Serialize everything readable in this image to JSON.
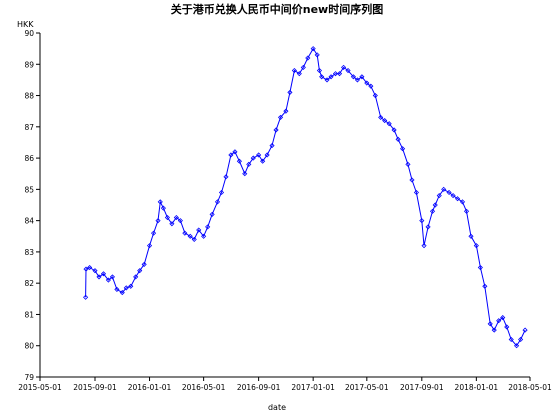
{
  "chart_data": {
    "type": "line",
    "title": "关于港币兑换人民币中间价new时间序列图",
    "xlabel": "date",
    "ylabel": "HKK",
    "ylim": [
      79,
      90
    ],
    "xlim": [
      "2015-05-01",
      "2018-05-01"
    ],
    "yticks": [
      79,
      80,
      81,
      82,
      83,
      84,
      85,
      86,
      87,
      88,
      89,
      90
    ],
    "xticks": [
      "2015-05-01",
      "2015-09-01",
      "2016-01-01",
      "2016-05-01",
      "2016-09-01",
      "2017-01-01",
      "2017-05-01",
      "2017-09-01",
      "2018-01-01",
      "2018-05-01"
    ],
    "line_color": "#0000ff",
    "marker": "diamond",
    "grid": false,
    "series": [
      {
        "name": "",
        "points": [
          [
            "2015-08-11",
            81.55
          ],
          [
            "2015-08-12",
            82.45
          ],
          [
            "2015-08-20",
            82.5
          ],
          [
            "2015-09-01",
            82.4
          ],
          [
            "2015-09-10",
            82.2
          ],
          [
            "2015-09-20",
            82.3
          ],
          [
            "2015-10-01",
            82.1
          ],
          [
            "2015-10-10",
            82.2
          ],
          [
            "2015-10-20",
            81.8
          ],
          [
            "2015-11-01",
            81.7
          ],
          [
            "2015-11-10",
            81.85
          ],
          [
            "2015-11-20",
            81.9
          ],
          [
            "2015-12-01",
            82.2
          ],
          [
            "2015-12-10",
            82.4
          ],
          [
            "2015-12-20",
            82.6
          ],
          [
            "2016-01-01",
            83.2
          ],
          [
            "2016-01-10",
            83.6
          ],
          [
            "2016-01-20",
            84.0
          ],
          [
            "2016-01-25",
            84.6
          ],
          [
            "2016-02-01",
            84.4
          ],
          [
            "2016-02-10",
            84.1
          ],
          [
            "2016-02-20",
            83.9
          ],
          [
            "2016-03-01",
            84.1
          ],
          [
            "2016-03-10",
            84.0
          ],
          [
            "2016-03-20",
            83.6
          ],
          [
            "2016-04-01",
            83.5
          ],
          [
            "2016-04-10",
            83.4
          ],
          [
            "2016-04-20",
            83.7
          ],
          [
            "2016-05-01",
            83.5
          ],
          [
            "2016-05-10",
            83.8
          ],
          [
            "2016-05-20",
            84.2
          ],
          [
            "2016-06-01",
            84.6
          ],
          [
            "2016-06-10",
            84.9
          ],
          [
            "2016-06-20",
            85.4
          ],
          [
            "2016-07-01",
            86.1
          ],
          [
            "2016-07-10",
            86.2
          ],
          [
            "2016-07-20",
            85.9
          ],
          [
            "2016-08-01",
            85.5
          ],
          [
            "2016-08-10",
            85.8
          ],
          [
            "2016-08-20",
            86.0
          ],
          [
            "2016-09-01",
            86.1
          ],
          [
            "2016-09-10",
            85.9
          ],
          [
            "2016-09-20",
            86.1
          ],
          [
            "2016-10-01",
            86.4
          ],
          [
            "2016-10-10",
            86.9
          ],
          [
            "2016-10-20",
            87.3
          ],
          [
            "2016-11-01",
            87.5
          ],
          [
            "2016-11-10",
            88.1
          ],
          [
            "2016-11-20",
            88.8
          ],
          [
            "2016-12-01",
            88.7
          ],
          [
            "2016-12-10",
            88.9
          ],
          [
            "2016-12-20",
            89.2
          ],
          [
            "2017-01-01",
            89.5
          ],
          [
            "2017-01-10",
            89.3
          ],
          [
            "2017-01-15",
            88.8
          ],
          [
            "2017-01-20",
            88.6
          ],
          [
            "2017-02-01",
            88.5
          ],
          [
            "2017-02-10",
            88.6
          ],
          [
            "2017-02-20",
            88.7
          ],
          [
            "2017-03-01",
            88.7
          ],
          [
            "2017-03-10",
            88.9
          ],
          [
            "2017-03-20",
            88.8
          ],
          [
            "2017-04-01",
            88.6
          ],
          [
            "2017-04-10",
            88.5
          ],
          [
            "2017-04-20",
            88.6
          ],
          [
            "2017-05-01",
            88.4
          ],
          [
            "2017-05-10",
            88.3
          ],
          [
            "2017-05-20",
            88.0
          ],
          [
            "2017-06-01",
            87.3
          ],
          [
            "2017-06-10",
            87.2
          ],
          [
            "2017-06-20",
            87.1
          ],
          [
            "2017-07-01",
            86.9
          ],
          [
            "2017-07-10",
            86.6
          ],
          [
            "2017-07-20",
            86.3
          ],
          [
            "2017-08-01",
            85.8
          ],
          [
            "2017-08-10",
            85.3
          ],
          [
            "2017-08-20",
            84.9
          ],
          [
            "2017-09-01",
            84.0
          ],
          [
            "2017-09-06",
            83.2
          ],
          [
            "2017-09-15",
            83.8
          ],
          [
            "2017-09-25",
            84.3
          ],
          [
            "2017-10-01",
            84.5
          ],
          [
            "2017-10-10",
            84.8
          ],
          [
            "2017-10-20",
            85.0
          ],
          [
            "2017-11-01",
            84.9
          ],
          [
            "2017-11-10",
            84.8
          ],
          [
            "2017-11-20",
            84.7
          ],
          [
            "2017-12-01",
            84.6
          ],
          [
            "2017-12-10",
            84.3
          ],
          [
            "2017-12-20",
            83.5
          ],
          [
            "2018-01-01",
            83.2
          ],
          [
            "2018-01-10",
            82.5
          ],
          [
            "2018-01-20",
            81.9
          ],
          [
            "2018-02-01",
            80.7
          ],
          [
            "2018-02-10",
            80.5
          ],
          [
            "2018-02-20",
            80.8
          ],
          [
            "2018-03-01",
            80.9
          ],
          [
            "2018-03-10",
            80.6
          ],
          [
            "2018-03-20",
            80.2
          ],
          [
            "2018-04-01",
            80.0
          ],
          [
            "2018-04-10",
            80.2
          ],
          [
            "2018-04-20",
            80.5
          ]
        ]
      }
    ]
  }
}
